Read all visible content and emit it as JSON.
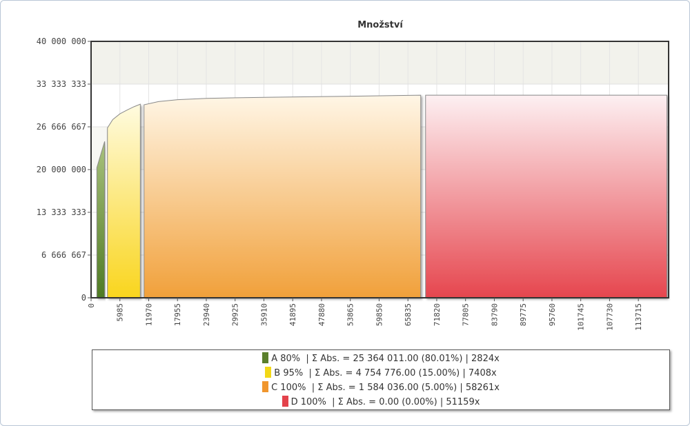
{
  "chart_data": {
    "type": "area",
    "title": "Množství",
    "xlabel": "",
    "ylabel": "",
    "ylim": [
      0,
      40000000
    ],
    "y_ticks": [
      "0",
      "6 666 667",
      "13 333 333",
      "20 000 000",
      "26 666 667",
      "33 333 333",
      "40 000 000"
    ],
    "y_tick_values": [
      0,
      6666667,
      13333333,
      20000000,
      26666667,
      33333333,
      40000000
    ],
    "xlim": [
      0,
      120000
    ],
    "x_ticks": [
      "0",
      "5985",
      "11970",
      "17955",
      "23940",
      "29925",
      "35910",
      "41895",
      "47880",
      "53865",
      "59850",
      "65835",
      "71820",
      "77805",
      "83790",
      "89775",
      "95760",
      "101745",
      "107730",
      "113715"
    ],
    "x_tick_values": [
      0,
      5985,
      11970,
      17955,
      23940,
      29925,
      35910,
      41895,
      47880,
      53865,
      59850,
      65835,
      71820,
      77805,
      83790,
      89775,
      95760,
      101745,
      107730,
      113715
    ],
    "grid": true,
    "series": [
      {
        "name": "A 80%",
        "color": "#5a7f2c",
        "x": [
          1200,
          2824
        ],
        "y": [
          20300000,
          24400000
        ]
      },
      {
        "name": "B 95%",
        "color": "#f2d817",
        "x": [
          3400,
          4500,
          6000,
          7500,
          8900,
          10232
        ],
        "y": [
          26500000,
          27800000,
          28700000,
          29300000,
          29800000,
          30200000
        ]
      },
      {
        "name": "C 100%",
        "color": "#f0962e",
        "x": [
          11000,
          14000,
          18000,
          24000,
          30000,
          40000,
          50000,
          60000,
          68493
        ],
        "y": [
          30100000,
          30600000,
          30900000,
          31100000,
          31200000,
          31300000,
          31400000,
          31500000,
          31600000
        ]
      },
      {
        "name": "D 100%",
        "color": "#e3424b",
        "x": [
          69500,
          119652
        ],
        "y": [
          31600000,
          31600000
        ]
      }
    ],
    "legend_position": "bottom"
  },
  "legend": [
    {
      "label": "A 80%  | Σ Abs. = 25 364 011.00 (80.01%) | 2824x",
      "color": "#5a7f2c"
    },
    {
      "label": "B 95%  | Σ Abs. = 4 754 776.00 (15.00%) | 7408x",
      "color": "#f2d817"
    },
    {
      "label": "C 100%  | Σ Abs. = 1 584 036.00 (5.00%) | 58261x",
      "color": "#f0962e"
    },
    {
      "label": "D 100%  | Σ Abs. = 0.00 (0.00%) | 51159x",
      "color": "#e3424b"
    }
  ]
}
